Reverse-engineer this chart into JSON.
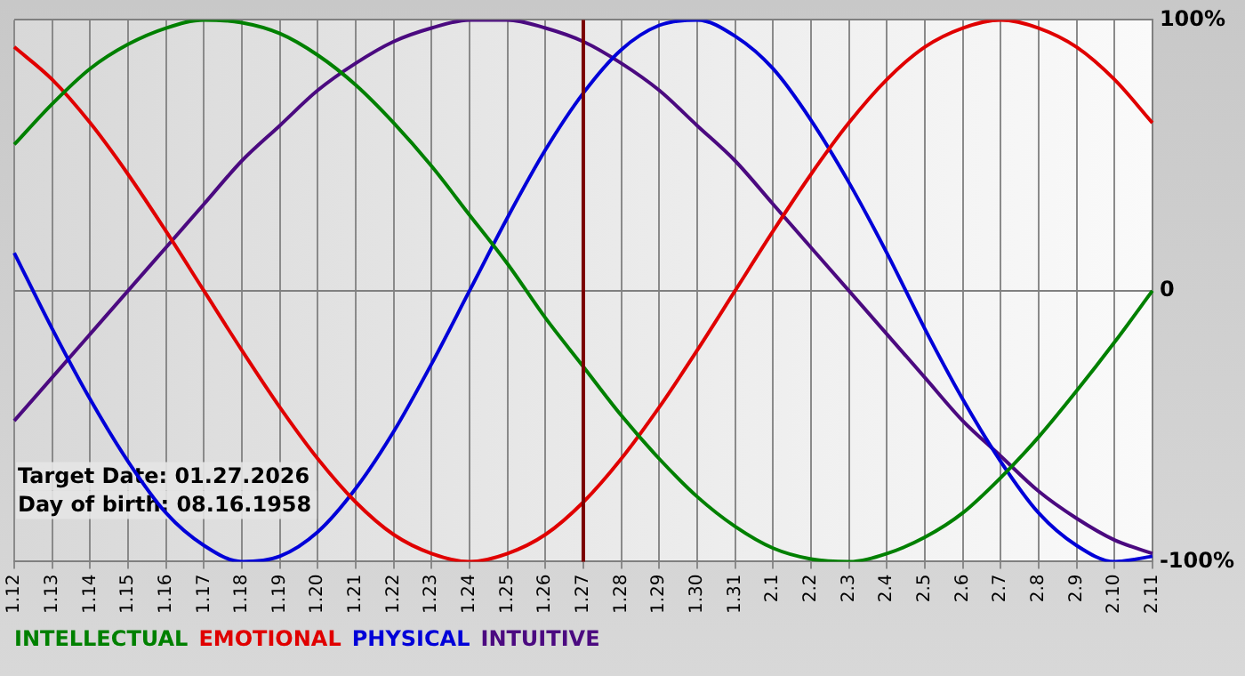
{
  "chart_data": {
    "type": "line",
    "categories": [
      "1.12",
      "1.13",
      "1.14",
      "1.15",
      "1.16",
      "1.17",
      "1.18",
      "1.19",
      "1.20",
      "1.21",
      "1.22",
      "1.23",
      "1.24",
      "1.25",
      "1.26",
      "1.27",
      "1.28",
      "1.29",
      "1.30",
      "1.31",
      "2.1",
      "2.2",
      "2.3",
      "2.4",
      "2.5",
      "2.6",
      "2.7",
      "2.8",
      "2.9",
      "2.10",
      "2.11"
    ],
    "series": [
      {
        "name": "INTELLECTUAL",
        "color": "#008000",
        "values": [
          54,
          69,
          82,
          91,
          97,
          100,
          99,
          95,
          87,
          76,
          62,
          46,
          28,
          10,
          -10,
          -28,
          -46,
          -62,
          -76,
          -87,
          -95,
          -99,
          -100,
          -97,
          -91,
          -82,
          -69,
          -54,
          -37,
          -19,
          0
        ]
      },
      {
        "name": "EMOTIONAL",
        "color": "#e00000",
        "values": [
          90,
          78,
          62,
          43,
          22,
          0,
          -22,
          -43,
          -62,
          -78,
          -90,
          -97,
          -100,
          -97,
          -90,
          -78,
          -62,
          -43,
          -22,
          0,
          22,
          43,
          62,
          78,
          90,
          97,
          100,
          97,
          90,
          78,
          62
        ]
      },
      {
        "name": "PHYSICAL",
        "color": "#0000d8",
        "values": [
          14,
          -14,
          -40,
          -63,
          -82,
          -94,
          -100,
          -98,
          -89,
          -73,
          -52,
          -27,
          0,
          27,
          52,
          73,
          89,
          98,
          100,
          94,
          82,
          63,
          40,
          14,
          -14,
          -40,
          -63,
          -82,
          -94,
          -100,
          -98
        ]
      },
      {
        "name": "INTUITIVE",
        "color": "#4b0a80",
        "values": [
          -48,
          -32,
          -16,
          0,
          16,
          32,
          48,
          61,
          74,
          84,
          92,
          97,
          100,
          100,
          97,
          92,
          84,
          74,
          61,
          48,
          32,
          16,
          0,
          -16,
          -32,
          -48,
          -61,
          -74,
          -84,
          -92,
          -97
        ]
      }
    ],
    "ylim": [
      -100,
      100
    ],
    "yticks": [
      {
        "value": -100,
        "label": "-100%"
      },
      {
        "value": 0,
        "label": "0"
      },
      {
        "value": 100,
        "label": "100%"
      }
    ],
    "ref_lines": [
      {
        "axis": "x",
        "value": "1.27",
        "color": "#7a0000"
      }
    ],
    "annotations": [
      "Target Date: 01.27.2026",
      "Day of birth: 08.16.1958"
    ],
    "grid": true,
    "legend": "bottom",
    "marker": "none",
    "line_style": "solid"
  }
}
